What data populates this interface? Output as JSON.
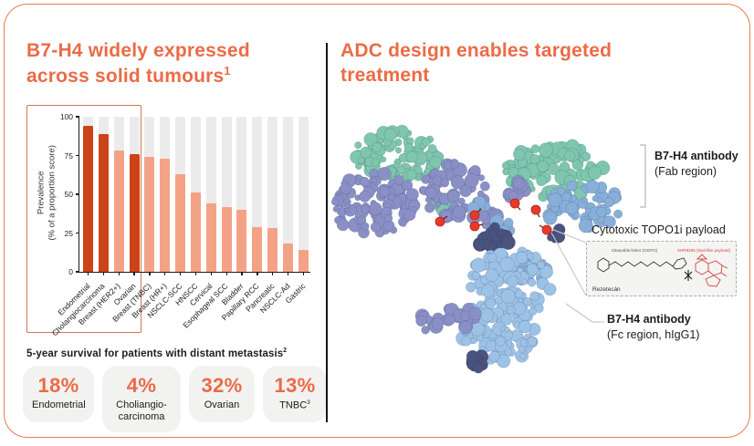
{
  "left_panel": {
    "title_line1": "B7-H4 widely expressed",
    "title_line2": "across solid tumours",
    "title_sup": "1",
    "survival_heading": "5-year survival for patients with distant metastasis",
    "survival_heading_sup": "2",
    "survival_cards": [
      {
        "value": "18%",
        "label": "Endometrial",
        "sup": ""
      },
      {
        "value": "4%",
        "label": "Choliangio-carcinoma",
        "sup": ""
      },
      {
        "value": "32%",
        "label": "Ovarian",
        "sup": ""
      },
      {
        "value": "13%",
        "label": "TNBC",
        "sup": "3"
      }
    ]
  },
  "chart_data": {
    "type": "bar",
    "title": "",
    "ylabel_line1": "Prevalence",
    "ylabel_line2": "(% of a proportion score)",
    "ylim": [
      0,
      100
    ],
    "yticks": [
      0,
      25,
      50,
      75,
      100
    ],
    "grid": false,
    "categories": [
      "Endometrial",
      "Cholangiocarcinoma",
      "Breast (HER2+)",
      "Ovarian",
      "Breast (TNBC)",
      "Breast (HR+)",
      "NSCLC-SCC",
      "HNSCC",
      "Cervical",
      "Esophageal SCC",
      "Bladder",
      "Papillary RCC",
      "Pancreatic",
      "NSCLC-Ad",
      "Gastric"
    ],
    "values": [
      94,
      89,
      78,
      76,
      74,
      73,
      63,
      51,
      44,
      42,
      40,
      29,
      28,
      18,
      14
    ],
    "highlight_indices": [
      0,
      1,
      3
    ],
    "highlight_box_categories": [
      "Endometrial",
      "Cholangiocarcinoma",
      "Breast (HER2+)",
      "Ovarian"
    ],
    "bar_color_highlight": "#CC4317",
    "bar_color_default": "#F4A286",
    "track_color": "#EBEBEB"
  },
  "right_panel": {
    "title_line1": "ADC design enables targeted",
    "title_line2": "treatment",
    "fab_label_title": "B7-H4 antibody",
    "fab_label_sub": "(Fab region)",
    "payload_box_title": "Cytotoxic TOPO1i payload",
    "linker_label": "Cleavable linker (GGFG)",
    "payload_label": "SHR9265 (Dxd-like payload)",
    "payload_name": "Rezetecán",
    "fc_label_title": "B7-H4 antibody",
    "fc_label_sub": "(Fc region, hIgG1)"
  },
  "colors": {
    "accent": "#EB6B46",
    "bar_dark": "#CC4317",
    "bar_light": "#F4A286",
    "payload_red": "#E63A2D",
    "teal": "#7EC6AD",
    "periwinkle": "#8A90C6",
    "blue": "#87AFD9",
    "light_blue": "#9CC2E6",
    "navy": "#4A527E"
  }
}
